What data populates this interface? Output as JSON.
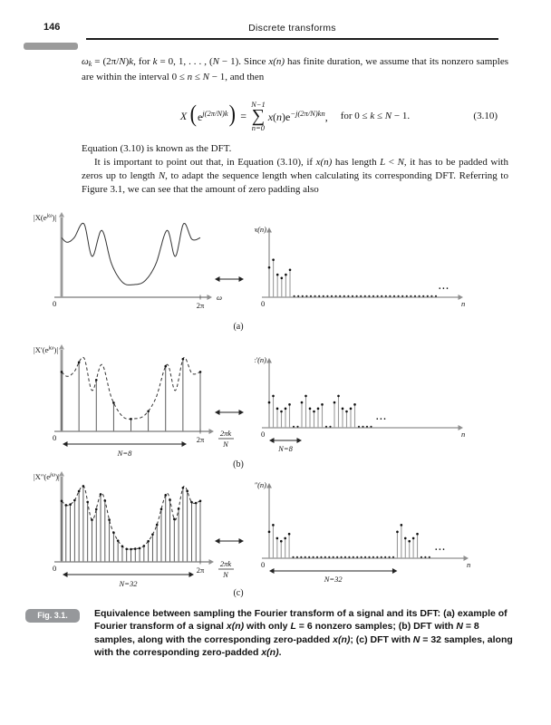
{
  "header": {
    "page_number": "146",
    "running_head": "Discrete transforms"
  },
  "body": {
    "p1": [
      {
        "x": "ω",
        "i": 1
      },
      {
        "x": "k",
        "i": 1,
        "sb": 1
      },
      {
        "x": " = (2π/"
      },
      {
        "x": "N",
        "i": 1
      },
      {
        "x": ")"
      },
      {
        "x": "k",
        "i": 1
      },
      {
        "x": ", for "
      },
      {
        "x": "k",
        "i": 1
      },
      {
        "x": " = 0, 1, . . . , ("
      },
      {
        "x": "N",
        "i": 1
      },
      {
        "x": " − 1). Since "
      },
      {
        "x": "x(n)",
        "i": 1
      },
      {
        "x": " has finite duration, we assume that its nonzero samples are within the interval 0 ≤ "
      },
      {
        "x": "n",
        "i": 1
      },
      {
        "x": " ≤ "
      },
      {
        "x": "N",
        "i": 1
      },
      {
        "x": " − 1, and then"
      }
    ],
    "p2a": [
      {
        "x": "Equation (3.10) is known as the DFT."
      }
    ],
    "p2b": [
      {
        "x": "It is important to point out that, in Equation (3.10), if "
      },
      {
        "x": "x(n)",
        "i": 1
      },
      {
        "x": " has length "
      },
      {
        "x": "L",
        "i": 1
      },
      {
        "x": " < "
      },
      {
        "x": "N",
        "i": 1
      },
      {
        "x": ", it has to be padded with zeros up to length "
      },
      {
        "x": "N",
        "i": 1
      },
      {
        "x": ", to adapt the sequence length when calculating its corresponding DFT. Referring to Figure 3.1, we can see that the amount of zero padding also"
      }
    ]
  },
  "equation": {
    "lhs": "X",
    "paren_open": "(",
    "base": "e",
    "lhs_exp": "j(2π/N)k",
    "paren_close": ")",
    "equals": "=",
    "sum_upper": "N−1",
    "sum_symbol": "∑",
    "sum_lower": "n=0",
    "term": [
      {
        "x": "x",
        "i": 1
      },
      {
        "x": "("
      },
      {
        "x": "n",
        "i": 1
      },
      {
        "x": ")e"
      }
    ],
    "term_exp": "−j(2π/N)kn",
    "comma": ",",
    "condition": [
      {
        "x": "for 0 ≤ "
      },
      {
        "x": "k",
        "i": 1
      },
      {
        "x": " ≤ "
      },
      {
        "x": "N",
        "i": 1
      },
      {
        "x": " − 1."
      }
    ],
    "number": "(3.10)"
  },
  "figure": {
    "envelope": [
      [
        0,
        0.8
      ],
      [
        0.04,
        0.74
      ],
      [
        0.09,
        0.8
      ],
      [
        0.16,
        0.99
      ],
      [
        0.22,
        0.55
      ],
      [
        0.29,
        0.9
      ],
      [
        0.36,
        0.45
      ],
      [
        0.44,
        0.2
      ],
      [
        0.52,
        0.17
      ],
      [
        0.6,
        0.22
      ],
      [
        0.68,
        0.45
      ],
      [
        0.76,
        0.9
      ],
      [
        0.82,
        0.55
      ],
      [
        0.88,
        0.99
      ],
      [
        0.94,
        0.78
      ],
      [
        1,
        0.8
      ]
    ],
    "heights": [
      0.62,
      0.78,
      0.47,
      0.4,
      0.47,
      0.57
    ],
    "rows": [
      {
        "label": "(a)",
        "left": {
          "ylabel_pre": "|X(e",
          "ylabel_sup": "jω",
          "ylabel_post": ")|",
          "origin": "0",
          "tick": "2π",
          "xlabel": "ω",
          "dashed": false,
          "stems": 0,
          "span_label": ""
        },
        "right": {
          "ylabel": "x(n)",
          "origin": "0",
          "xlabel": "n",
          "groups": [
            0
          ],
          "zeros": [
            [
              6,
              40
            ]
          ],
          "ellipsis": "...",
          "span_label": "",
          "span_n": 0
        }
      },
      {
        "label": "(b)",
        "left": {
          "ylabel_pre": "|X′(e",
          "ylabel_sup": "jω",
          "ylabel_post": ")|",
          "origin": "0",
          "tick": "2π",
          "frac_num": "2πk",
          "frac_den": "N",
          "dashed": true,
          "stems": 8,
          "span_label": "N=8"
        },
        "right": {
          "ylabel": "x′(n)",
          "origin": "0",
          "xlabel": "n",
          "groups": [
            0,
            8,
            16
          ],
          "zeros": [
            [
              6,
              7
            ],
            [
              14,
              15
            ],
            [
              22,
              25
            ]
          ],
          "ellipsis": "...",
          "span_label": "N=8",
          "span_n": 8
        }
      },
      {
        "label": "(c)",
        "left": {
          "ylabel_pre": "|X″(e",
          "ylabel_sup": "jω",
          "ylabel_post": ")|",
          "origin": "0",
          "tick": "2π",
          "frac_num": "2πk",
          "frac_den": "N",
          "dashed": true,
          "stems": 32,
          "span_label": "N=32"
        },
        "right": {
          "ylabel": "x″(n)",
          "origin": "0",
          "xlabel": "n",
          "groups": [
            0,
            32
          ],
          "zeros": [
            [
              6,
              31
            ],
            [
              38,
              40
            ]
          ],
          "ellipsis": "...",
          "span_label": "N=32",
          "span_n": 32
        }
      }
    ]
  },
  "caption": {
    "tag": "Fig. 3.1.",
    "segments": [
      {
        "x": "Equivalence between sampling the Fourier transform of a signal and its DFT: (a) example of Fourier transform of a signal "
      },
      {
        "x": "x(n)",
        "i": 1
      },
      {
        "x": " with only "
      },
      {
        "x": "L",
        "i": 1
      },
      {
        "x": " = 6 nonzero samples; (b) DFT with "
      },
      {
        "x": "N",
        "i": 1
      },
      {
        "x": " = 8 samples, along with the corresponding zero-padded "
      },
      {
        "x": "x(n)",
        "i": 1
      },
      {
        "x": "; (c) DFT with "
      },
      {
        "x": "N",
        "i": 1
      },
      {
        "x": " = 32 samples, along with the corresponding zero-padded "
      },
      {
        "x": "x(n)",
        "i": 1
      },
      {
        "x": "."
      }
    ]
  }
}
